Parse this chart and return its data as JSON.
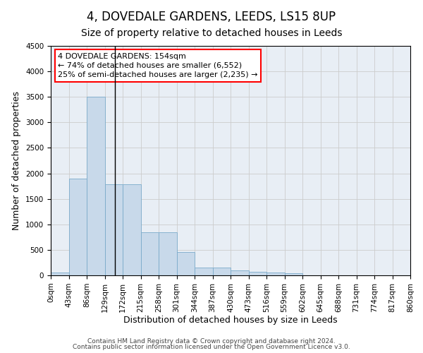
{
  "title": "4, DOVEDALE GARDENS, LEEDS, LS15 8UP",
  "subtitle": "Size of property relative to detached houses in Leeds",
  "xlabel": "Distribution of detached houses by size in Leeds",
  "ylabel": "Number of detached properties",
  "bar_values": [
    50,
    1900,
    3500,
    1780,
    1780,
    840,
    840,
    460,
    155,
    155,
    95,
    75,
    55,
    40,
    0,
    0,
    0,
    0,
    0,
    0
  ],
  "bar_color": "#c8d9ea",
  "bar_edge_color": "#7aaaca",
  "x_tick_labels": [
    "0sqm",
    "43sqm",
    "86sqm",
    "129sqm",
    "172sqm",
    "215sqm",
    "258sqm",
    "301sqm",
    "344sqm",
    "387sqm",
    "430sqm",
    "473sqm",
    "516sqm",
    "559sqm",
    "602sqm",
    "645sqm",
    "688sqm",
    "731sqm",
    "774sqm",
    "817sqm",
    "860sqm"
  ],
  "ylim": [
    0,
    4500
  ],
  "yticks": [
    0,
    500,
    1000,
    1500,
    2000,
    2500,
    3000,
    3500,
    4000,
    4500
  ],
  "vline_x": 3.58,
  "annotation_line1": "4 DOVEDALE GARDENS: 154sqm",
  "annotation_line2": "← 74% of detached houses are smaller (6,552)",
  "annotation_line3": "25% of semi-detached houses are larger (2,235) →",
  "grid_color": "#cccccc",
  "background_color": "#e8eef5",
  "footer_line1": "Contains HM Land Registry data © Crown copyright and database right 2024.",
  "footer_line2": "Contains public sector information licensed under the Open Government Licence v3.0.",
  "title_fontsize": 12,
  "subtitle_fontsize": 10,
  "axis_label_fontsize": 9,
  "tick_fontsize": 7.5,
  "annotation_fontsize": 8
}
